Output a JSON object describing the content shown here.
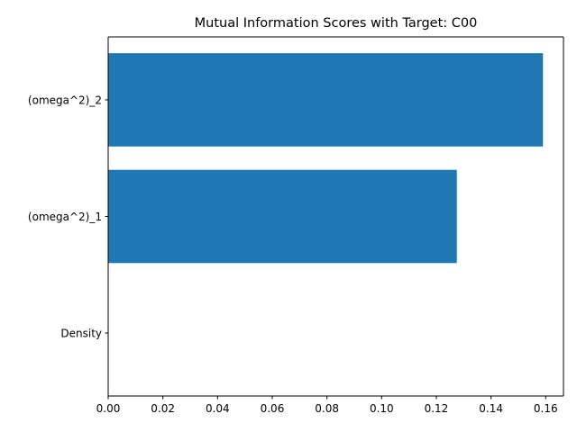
{
  "chart_data": {
    "type": "bar",
    "orientation": "horizontal",
    "title": "Mutual Information Scores with Target: C00",
    "xlabel": "",
    "ylabel": "",
    "categories": [
      "Density",
      "(omega^2)_1",
      "(omega^2)_2"
    ],
    "values": [
      0.0,
      0.1275,
      0.159
    ],
    "xlim": [
      0,
      0.1665
    ],
    "xticks": [
      "0.00",
      "0.02",
      "0.04",
      "0.06",
      "0.08",
      "0.10",
      "0.12",
      "0.14",
      "0.16"
    ],
    "grid": false,
    "legend": "none",
    "bar_color": "#1f77b4"
  }
}
